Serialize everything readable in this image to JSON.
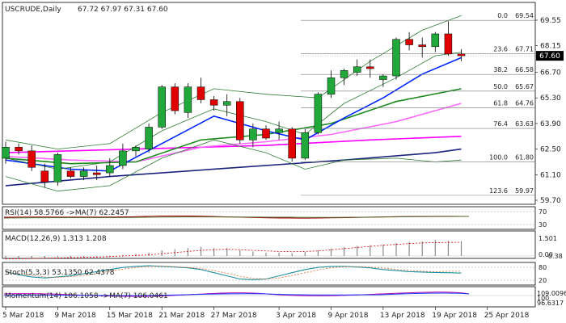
{
  "chart_data": {
    "type": "candlestick",
    "symbol_line": {
      "symbol": "USCRUDE,Daily",
      "ohlc": [
        "67.72",
        "67.97",
        "67.31",
        "67.60"
      ]
    },
    "price_axis": {
      "range": [
        59.7,
        70.3
      ],
      "ticks": [
        "69.55",
        "68.15",
        "66.70",
        "65.30",
        "63.90",
        "62.50",
        "61.10",
        "59.70"
      ]
    },
    "last_price": {
      "label": "67.60",
      "value": 67.6
    },
    "x_axis": {
      "labels": [
        "5 Mar 2018",
        "9 Mar 2018",
        "15 Mar 2018",
        "21 Mar 2018",
        "27 Mar 2018",
        "3 Apr 2018",
        "9 Apr 2018",
        "13 Apr 2018",
        "19 Apr 2018",
        "25 Apr 2018"
      ],
      "label_bars": [
        0,
        4,
        8,
        12,
        16,
        21,
        25,
        29,
        33,
        37
      ]
    },
    "candles": [
      [
        62.0,
        62.9,
        61.7,
        62.6
      ],
      [
        62.6,
        62.8,
        62.2,
        62.4
      ],
      [
        62.4,
        62.7,
        61.3,
        61.5
      ],
      [
        61.3,
        61.7,
        60.4,
        60.7
      ],
      [
        60.7,
        62.3,
        60.5,
        62.2
      ],
      [
        61.3,
        61.5,
        60.9,
        61.0
      ],
      [
        61.0,
        61.5,
        60.8,
        61.3
      ],
      [
        61.2,
        61.6,
        60.8,
        61.1
      ],
      [
        61.2,
        62.0,
        61.0,
        61.6
      ],
      [
        61.6,
        62.8,
        61.4,
        62.4
      ],
      [
        62.4,
        62.7,
        62.1,
        62.6
      ],
      [
        62.5,
        63.9,
        62.3,
        63.7
      ],
      [
        63.7,
        66.0,
        63.6,
        65.9
      ],
      [
        65.9,
        66.1,
        64.4,
        64.6
      ],
      [
        64.5,
        66.1,
        64.2,
        65.9
      ],
      [
        65.9,
        66.4,
        65.0,
        65.2
      ],
      [
        65.2,
        65.4,
        64.6,
        64.9
      ],
      [
        64.9,
        65.5,
        64.3,
        65.1
      ],
      [
        65.1,
        65.3,
        62.8,
        63.0
      ],
      [
        63.0,
        63.9,
        62.6,
        63.6
      ],
      [
        63.6,
        63.8,
        63.0,
        63.1
      ],
      [
        63.4,
        64.0,
        63.0,
        63.6
      ],
      [
        63.6,
        63.7,
        61.8,
        62.0
      ],
      [
        62.0,
        63.6,
        61.9,
        63.4
      ],
      [
        63.4,
        65.6,
        63.3,
        65.5
      ],
      [
        65.5,
        66.8,
        65.3,
        66.4
      ],
      [
        66.4,
        66.9,
        66.0,
        66.8
      ],
      [
        66.7,
        67.4,
        66.5,
        67.0
      ],
      [
        67.0,
        67.4,
        66.4,
        66.9
      ],
      [
        66.3,
        66.6,
        65.9,
        66.5
      ],
      [
        66.5,
        68.6,
        66.3,
        68.5
      ],
      [
        68.5,
        68.9,
        67.9,
        68.2
      ],
      [
        68.2,
        68.6,
        67.5,
        68.1
      ],
      [
        68.1,
        68.9,
        67.8,
        68.8
      ],
      [
        68.8,
        69.5,
        67.6,
        67.7
      ],
      [
        67.7,
        67.97,
        67.31,
        67.6
      ]
    ],
    "overlays": [
      {
        "color": "#1a237e",
        "values": [
          [
            0,
            60.5
          ],
          [
            8,
            61.0
          ],
          [
            18,
            61.5
          ],
          [
            26,
            61.9
          ],
          [
            33,
            62.3
          ],
          [
            35,
            62.5
          ]
        ]
      },
      {
        "color": "#ff00ff",
        "values": [
          [
            0,
            62.3
          ],
          [
            10,
            62.5
          ],
          [
            20,
            62.7
          ],
          [
            28,
            63.0
          ],
          [
            35,
            63.2
          ]
        ]
      },
      {
        "color": "#ff66ff",
        "values": [
          [
            0,
            62.1
          ],
          [
            5,
            61.9
          ],
          [
            10,
            61.8
          ],
          [
            15,
            62.6
          ],
          [
            20,
            62.9
          ],
          [
            25,
            63.3
          ],
          [
            30,
            64.0
          ],
          [
            35,
            65.0
          ]
        ]
      },
      {
        "color": "#1b8a1b",
        "values": [
          [
            0,
            62.0
          ],
          [
            5,
            61.7
          ],
          [
            10,
            61.8
          ],
          [
            15,
            63.0
          ],
          [
            20,
            63.3
          ],
          [
            25,
            63.9
          ],
          [
            30,
            65.1
          ],
          [
            35,
            65.8
          ]
        ]
      },
      {
        "color": "#0026ff",
        "values": [
          [
            0,
            61.9
          ],
          [
            5,
            61.4
          ],
          [
            8,
            61.3
          ],
          [
            12,
            62.8
          ],
          [
            16,
            64.3
          ],
          [
            20,
            63.5
          ],
          [
            23,
            63.0
          ],
          [
            26,
            64.2
          ],
          [
            29,
            65.3
          ],
          [
            32,
            66.6
          ],
          [
            35,
            67.5
          ]
        ]
      },
      {
        "color": "#2e7d32",
        "values": [
          [
            0,
            62.0
          ],
          [
            4,
            61.4
          ],
          [
            8,
            61.8
          ],
          [
            12,
            63.5
          ],
          [
            16,
            64.7
          ],
          [
            20,
            64.0
          ],
          [
            23,
            63.3
          ],
          [
            26,
            65.0
          ],
          [
            30,
            66.4
          ],
          [
            33,
            67.6
          ],
          [
            35,
            67.8
          ]
        ]
      },
      {
        "color": "#2e7d32",
        "values": [
          [
            0,
            63.0
          ],
          [
            4,
            62.5
          ],
          [
            8,
            62.8
          ],
          [
            12,
            64.5
          ],
          [
            16,
            65.8
          ],
          [
            20,
            65.5
          ],
          [
            24,
            65.3
          ],
          [
            28,
            67.3
          ],
          [
            32,
            69.0
          ],
          [
            35,
            69.8
          ]
        ]
      },
      {
        "color": "#2e7d32",
        "values": [
          [
            0,
            61.0
          ],
          [
            4,
            60.2
          ],
          [
            8,
            60.5
          ],
          [
            12,
            62.0
          ],
          [
            16,
            63.0
          ],
          [
            20,
            62.3
          ],
          [
            23,
            61.4
          ],
          [
            26,
            61.9
          ],
          [
            30,
            62.0
          ],
          [
            33,
            61.8
          ],
          [
            35,
            61.9
          ]
        ]
      }
    ],
    "fibonacci": {
      "line_color": "#777777",
      "levels": [
        {
          "ratio": "0.0",
          "price": "69.54",
          "value": 69.54
        },
        {
          "ratio": "23.6",
          "price": "67.71",
          "value": 67.71
        },
        {
          "ratio": "38.2",
          "price": "66.58",
          "value": 66.58
        },
        {
          "ratio": "50.0",
          "price": "65.67",
          "value": 65.67
        },
        {
          "ratio": "61.8",
          "price": "64.76",
          "value": 64.76
        },
        {
          "ratio": "76.4",
          "price": "63.63",
          "value": 63.63
        },
        {
          "ratio": "100.0",
          "price": "61.80",
          "value": 61.8
        },
        {
          "ratio": "123.6",
          "price": "59.97",
          "value": 59.97
        }
      ]
    },
    "indicators": {
      "rsi": {
        "title": "RSI(14) 58.5766 ->MA(7) 62.2457",
        "ticks": [
          "70",
          "30"
        ]
      },
      "macd": {
        "title": "MACD(12,26,9) 1.313 1.208",
        "ticks": [
          "1.501",
          "0.00",
          "-0.38"
        ],
        "histogram": [
          -0.3,
          -0.2,
          -0.2,
          -0.2,
          -0.1,
          -0.2,
          -0.1,
          -0.1,
          -0.05,
          0.1,
          0.2,
          0.3,
          0.5,
          0.6,
          0.7,
          0.8,
          0.7,
          0.7,
          0.5,
          0.4,
          0.3,
          0.3,
          0.25,
          0.35,
          0.5,
          0.65,
          0.8,
          0.9,
          0.95,
          1.0,
          1.15,
          1.25,
          1.3,
          1.4,
          1.35,
          1.31
        ],
        "signal": [
          -0.25,
          -0.24,
          -0.22,
          -0.2,
          -0.18,
          -0.15,
          -0.12,
          -0.1,
          -0.05,
          0.0,
          0.05,
          0.1,
          0.2,
          0.3,
          0.4,
          0.5,
          0.55,
          0.6,
          0.55,
          0.5,
          0.45,
          0.4,
          0.38,
          0.4,
          0.45,
          0.55,
          0.65,
          0.75,
          0.85,
          0.95,
          1.02,
          1.1,
          1.15,
          1.18,
          1.2,
          1.21
        ]
      },
      "stoch": {
        "title": "Stoch(5,3,3) 53.1350 62.4378",
        "ticks": [
          "80",
          "20"
        ],
        "k": [
          60,
          45,
          35,
          30,
          35,
          40,
          50,
          60,
          70,
          80,
          85,
          88,
          85,
          82,
          78,
          70,
          55,
          40,
          25,
          22,
          25,
          40,
          55,
          70,
          80,
          85,
          85,
          82,
          78,
          70,
          65,
          60,
          58,
          56,
          55,
          53
        ],
        "d": [
          55,
          50,
          42,
          35,
          33,
          36,
          42,
          52,
          62,
          72,
          80,
          85,
          86,
          84,
          80,
          75,
          65,
          52,
          38,
          28,
          25,
          30,
          42,
          55,
          68,
          78,
          83,
          84,
          82,
          77,
          70,
          66,
          62,
          60,
          62,
          62
        ]
      },
      "momentum": {
        "title": "Momentum(14) 106.1058 ->MA(7) 106.0461",
        "ticks": [
          "109.0096",
          "100",
          "96.6317"
        ]
      }
    }
  }
}
